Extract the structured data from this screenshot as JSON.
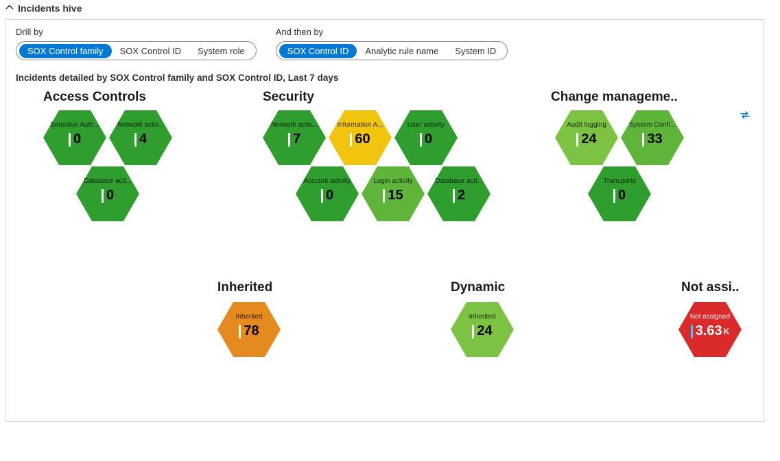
{
  "section": {
    "title": "Incidents hive"
  },
  "drill": {
    "primary": {
      "label": "Drill by",
      "options": [
        "SOX Control family",
        "SOX Control ID",
        "System role"
      ],
      "selected": "SOX Control family"
    },
    "secondary": {
      "label": "And then by",
      "options": [
        "SOX Control ID",
        "Analytic rule name",
        "System ID"
      ],
      "selected": "SOX Control ID"
    }
  },
  "subtitle": "Incidents detailed by SOX Control family and SOX Control ID, Last 7 days",
  "colors": {
    "green_dark": "#2f9e2f",
    "green_med": "#5fb53a",
    "green_light": "#7cc243",
    "yellow": "#f1c40f",
    "orange": "#e58a1f",
    "red": "#d92b2b",
    "blue_accent": "#1b88d6"
  },
  "groups": {
    "access": {
      "title": "Access Controls",
      "hex": [
        {
          "label": "Sensitive Auth...",
          "value": "0",
          "color": "green_dark"
        },
        {
          "label": "Network activ...",
          "value": "4",
          "color": "green_dark"
        },
        {
          "label": "Database acti...",
          "value": "0",
          "color": "green_dark"
        }
      ]
    },
    "security": {
      "title": "Security",
      "hex": [
        {
          "label": "Network activ...",
          "value": "7",
          "color": "green_dark"
        },
        {
          "label": "Information A...",
          "value": "60",
          "color": "yellow"
        },
        {
          "label": "User activity",
          "value": "0",
          "color": "green_dark"
        },
        {
          "label": "Account activity",
          "value": "0",
          "color": "green_dark",
          "border": "blue_accent"
        },
        {
          "label": "Login activity",
          "value": "15",
          "color": "green_med"
        },
        {
          "label": "Database acti...",
          "value": "2",
          "color": "green_dark"
        }
      ]
    },
    "change": {
      "title": "Change manageme..",
      "hex": [
        {
          "label": "Audit logging",
          "value": "24",
          "color": "green_light"
        },
        {
          "label": "System Confi...",
          "value": "33",
          "color": "green_med"
        },
        {
          "label": "Transports",
          "value": "0",
          "color": "green_dark"
        }
      ]
    },
    "inherited": {
      "title": "Inherited",
      "hex": [
        {
          "label": "Inherited",
          "value": "78",
          "color": "orange"
        }
      ]
    },
    "dynamic": {
      "title": "Dynamic",
      "hex": [
        {
          "label": "Inherited",
          "value": "24",
          "color": "green_light"
        }
      ]
    },
    "not_assigned": {
      "title": "Not assi..",
      "hex": [
        {
          "label": "Not assigned",
          "value": "3.63",
          "unit": "K",
          "color": "red"
        }
      ]
    }
  }
}
